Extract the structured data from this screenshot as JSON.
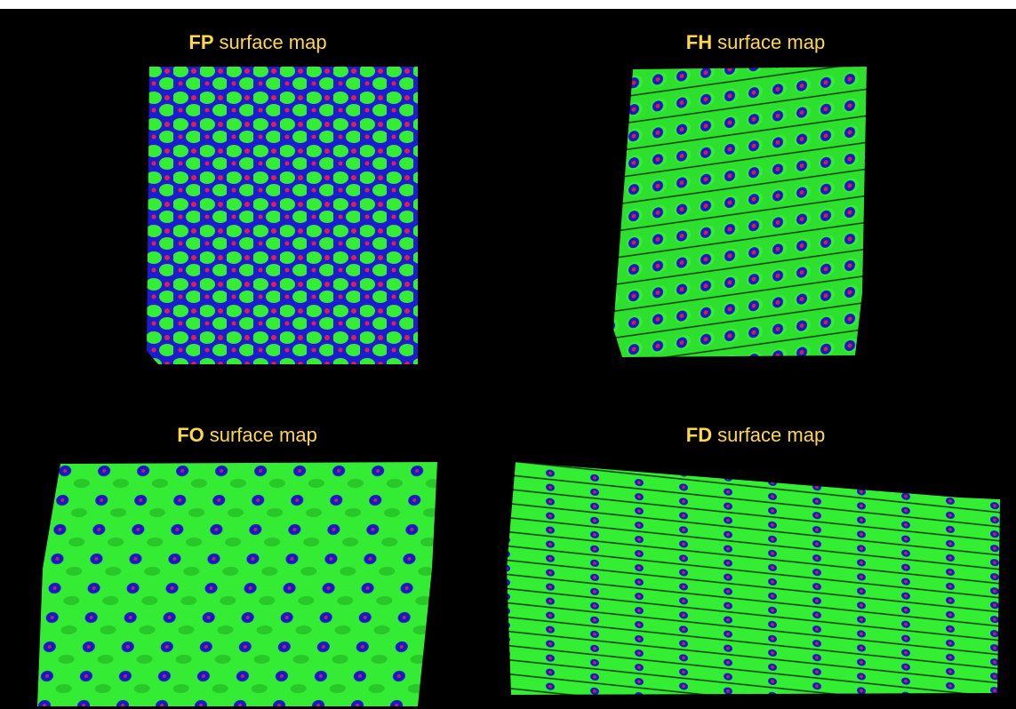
{
  "panels": [
    {
      "code": "FP",
      "label": "surface map"
    },
    {
      "code": "FH",
      "label": "surface map"
    },
    {
      "code": "FO",
      "label": "surface map"
    },
    {
      "code": "FD",
      "label": "surface map"
    }
  ]
}
